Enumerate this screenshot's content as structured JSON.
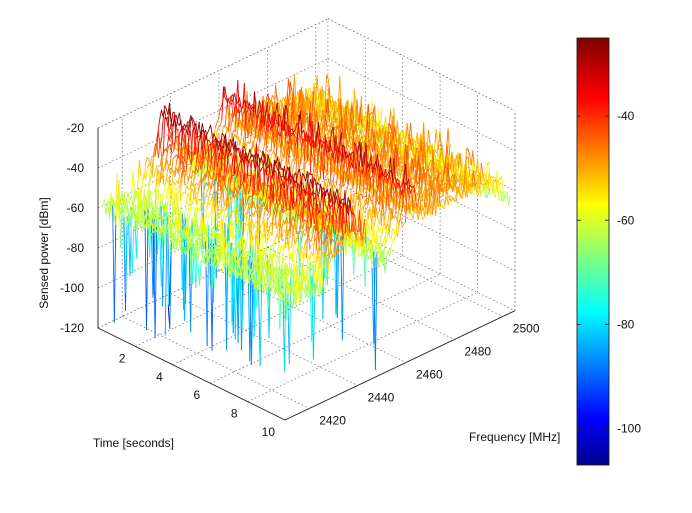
{
  "chart_data": {
    "type": "surface",
    "title": "",
    "xlabel": "Time [seconds]",
    "ylabel": "Frequency [MHz]",
    "zlabel": "Sensed power [dBm]",
    "x_ticks": [
      "2",
      "4",
      "6",
      "8",
      "10"
    ],
    "y_ticks": [
      "2420",
      "2440",
      "2460",
      "2480",
      "2500"
    ],
    "z_ticks": [
      "-20",
      "-40",
      "-60",
      "-80",
      "-100",
      "-120"
    ],
    "colorbar_ticks": [
      "-40",
      "-60",
      "-80",
      "-100"
    ],
    "xlim": [
      0,
      10
    ],
    "ylim": [
      2410,
      2505
    ],
    "zlim": [
      -120,
      -20
    ],
    "clim": [
      -107,
      -25
    ],
    "colormap": "jet",
    "grid": true,
    "noise_floor_dbm": -62,
    "signals": [
      {
        "center_mhz": 2437,
        "width_mhz": 2,
        "peak_dbm": -27
      },
      {
        "center_mhz": 2462,
        "width_mhz": 2,
        "peak_dbm": -32
      },
      {
        "center_mhz": 2480,
        "width_mhz": 20,
        "peak_dbm": -48
      }
    ]
  },
  "colors": {
    "background": "#ffffff",
    "axis": "#222222",
    "grid": "#666666"
  }
}
